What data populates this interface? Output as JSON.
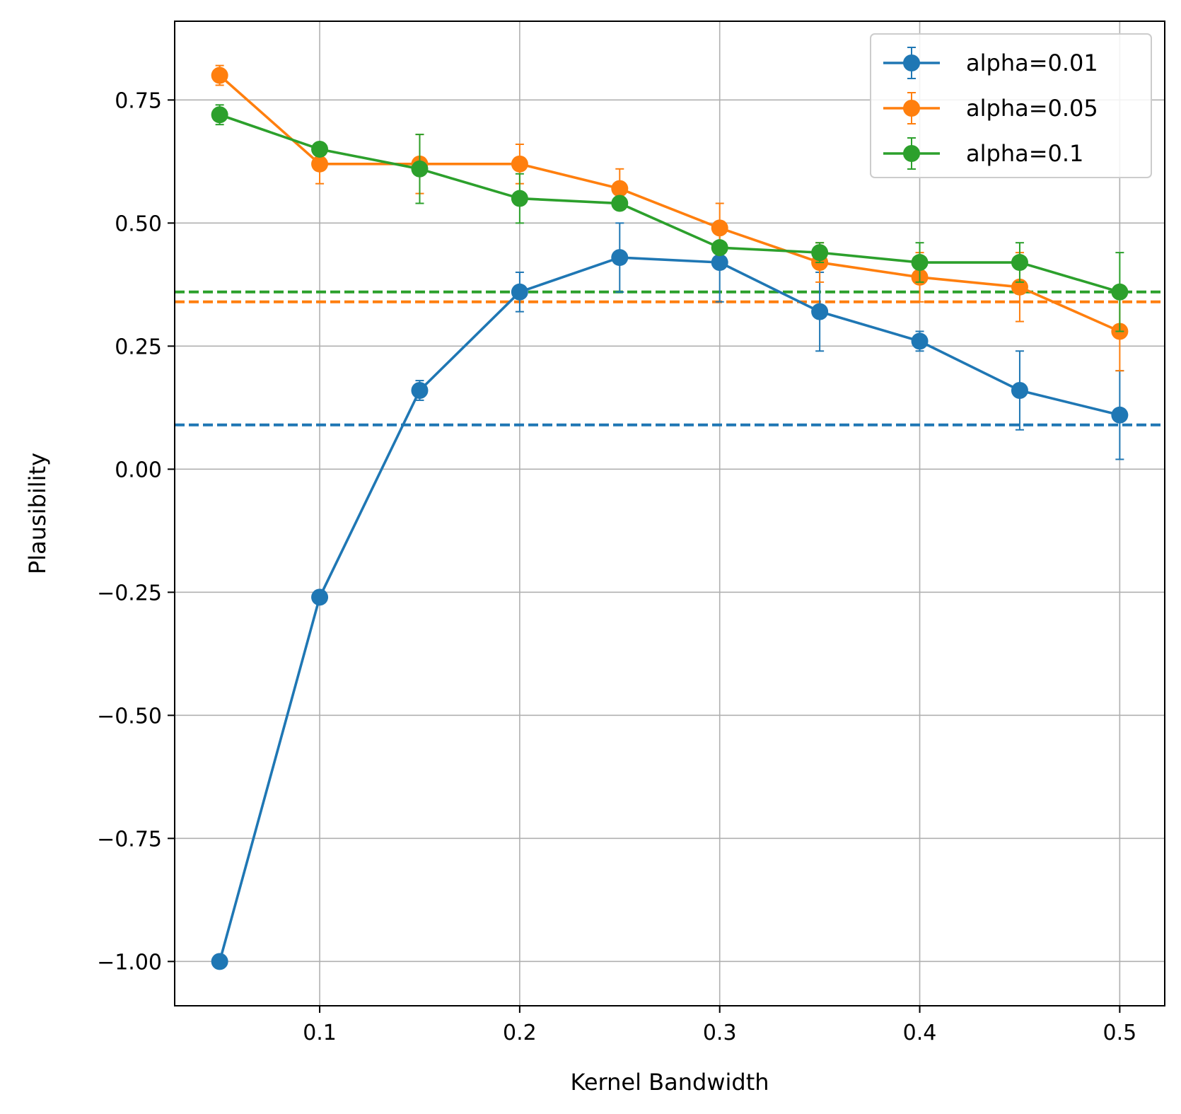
{
  "chart_data": {
    "type": "line",
    "title": "",
    "xlabel": "Kernel Bandwidth",
    "ylabel": "Plausibility",
    "xlim": [
      0.0275,
      0.5225
    ],
    "ylim": [
      -1.09,
      0.91
    ],
    "grid": true,
    "legend_position": "top-right",
    "x_ticks": [
      {
        "value": 0.1,
        "label": "0.1"
      },
      {
        "value": 0.2,
        "label": "0.2"
      },
      {
        "value": 0.3,
        "label": "0.3"
      },
      {
        "value": 0.4,
        "label": "0.4"
      },
      {
        "value": 0.5,
        "label": "0.5"
      }
    ],
    "y_ticks": [
      {
        "value": 0.75,
        "label": "0.75"
      },
      {
        "value": 0.5,
        "label": "0.50"
      },
      {
        "value": 0.25,
        "label": "0.25"
      },
      {
        "value": 0.0,
        "label": "0.00"
      },
      {
        "value": -0.25,
        "label": "−0.25"
      },
      {
        "value": -0.5,
        "label": "−0.50"
      },
      {
        "value": -0.75,
        "label": "−0.75"
      },
      {
        "value": -1.0,
        "label": "−1.00"
      }
    ],
    "x": [
      0.05,
      0.1,
      0.15,
      0.2,
      0.25,
      0.3,
      0.35,
      0.4,
      0.45,
      0.5
    ],
    "series": [
      {
        "name": "alpha=0.01",
        "color": "#1f77b4",
        "values": [
          -1.0,
          -0.26,
          0.16,
          0.36,
          0.43,
          0.42,
          0.32,
          0.26,
          0.16,
          0.11
        ],
        "errors": [
          0.0,
          0.0,
          0.02,
          0.04,
          0.07,
          0.08,
          0.08,
          0.02,
          0.08,
          0.09
        ],
        "baseline": 0.09
      },
      {
        "name": "alpha=0.05",
        "color": "#ff7f0e",
        "values": [
          0.8,
          0.62,
          0.62,
          0.62,
          0.57,
          0.49,
          0.42,
          0.39,
          0.37,
          0.28
        ],
        "errors": [
          0.02,
          0.04,
          0.06,
          0.04,
          0.04,
          0.05,
          0.04,
          0.05,
          0.07,
          0.08
        ],
        "baseline": 0.34
      },
      {
        "name": "alpha=0.1",
        "color": "#2ca02c",
        "values": [
          0.72,
          0.65,
          0.61,
          0.55,
          0.54,
          0.45,
          0.44,
          0.42,
          0.42,
          0.36
        ],
        "errors": [
          0.02,
          0.01,
          0.07,
          0.05,
          0.0,
          0.0,
          0.02,
          0.04,
          0.04,
          0.08
        ],
        "baseline": 0.36
      }
    ]
  }
}
